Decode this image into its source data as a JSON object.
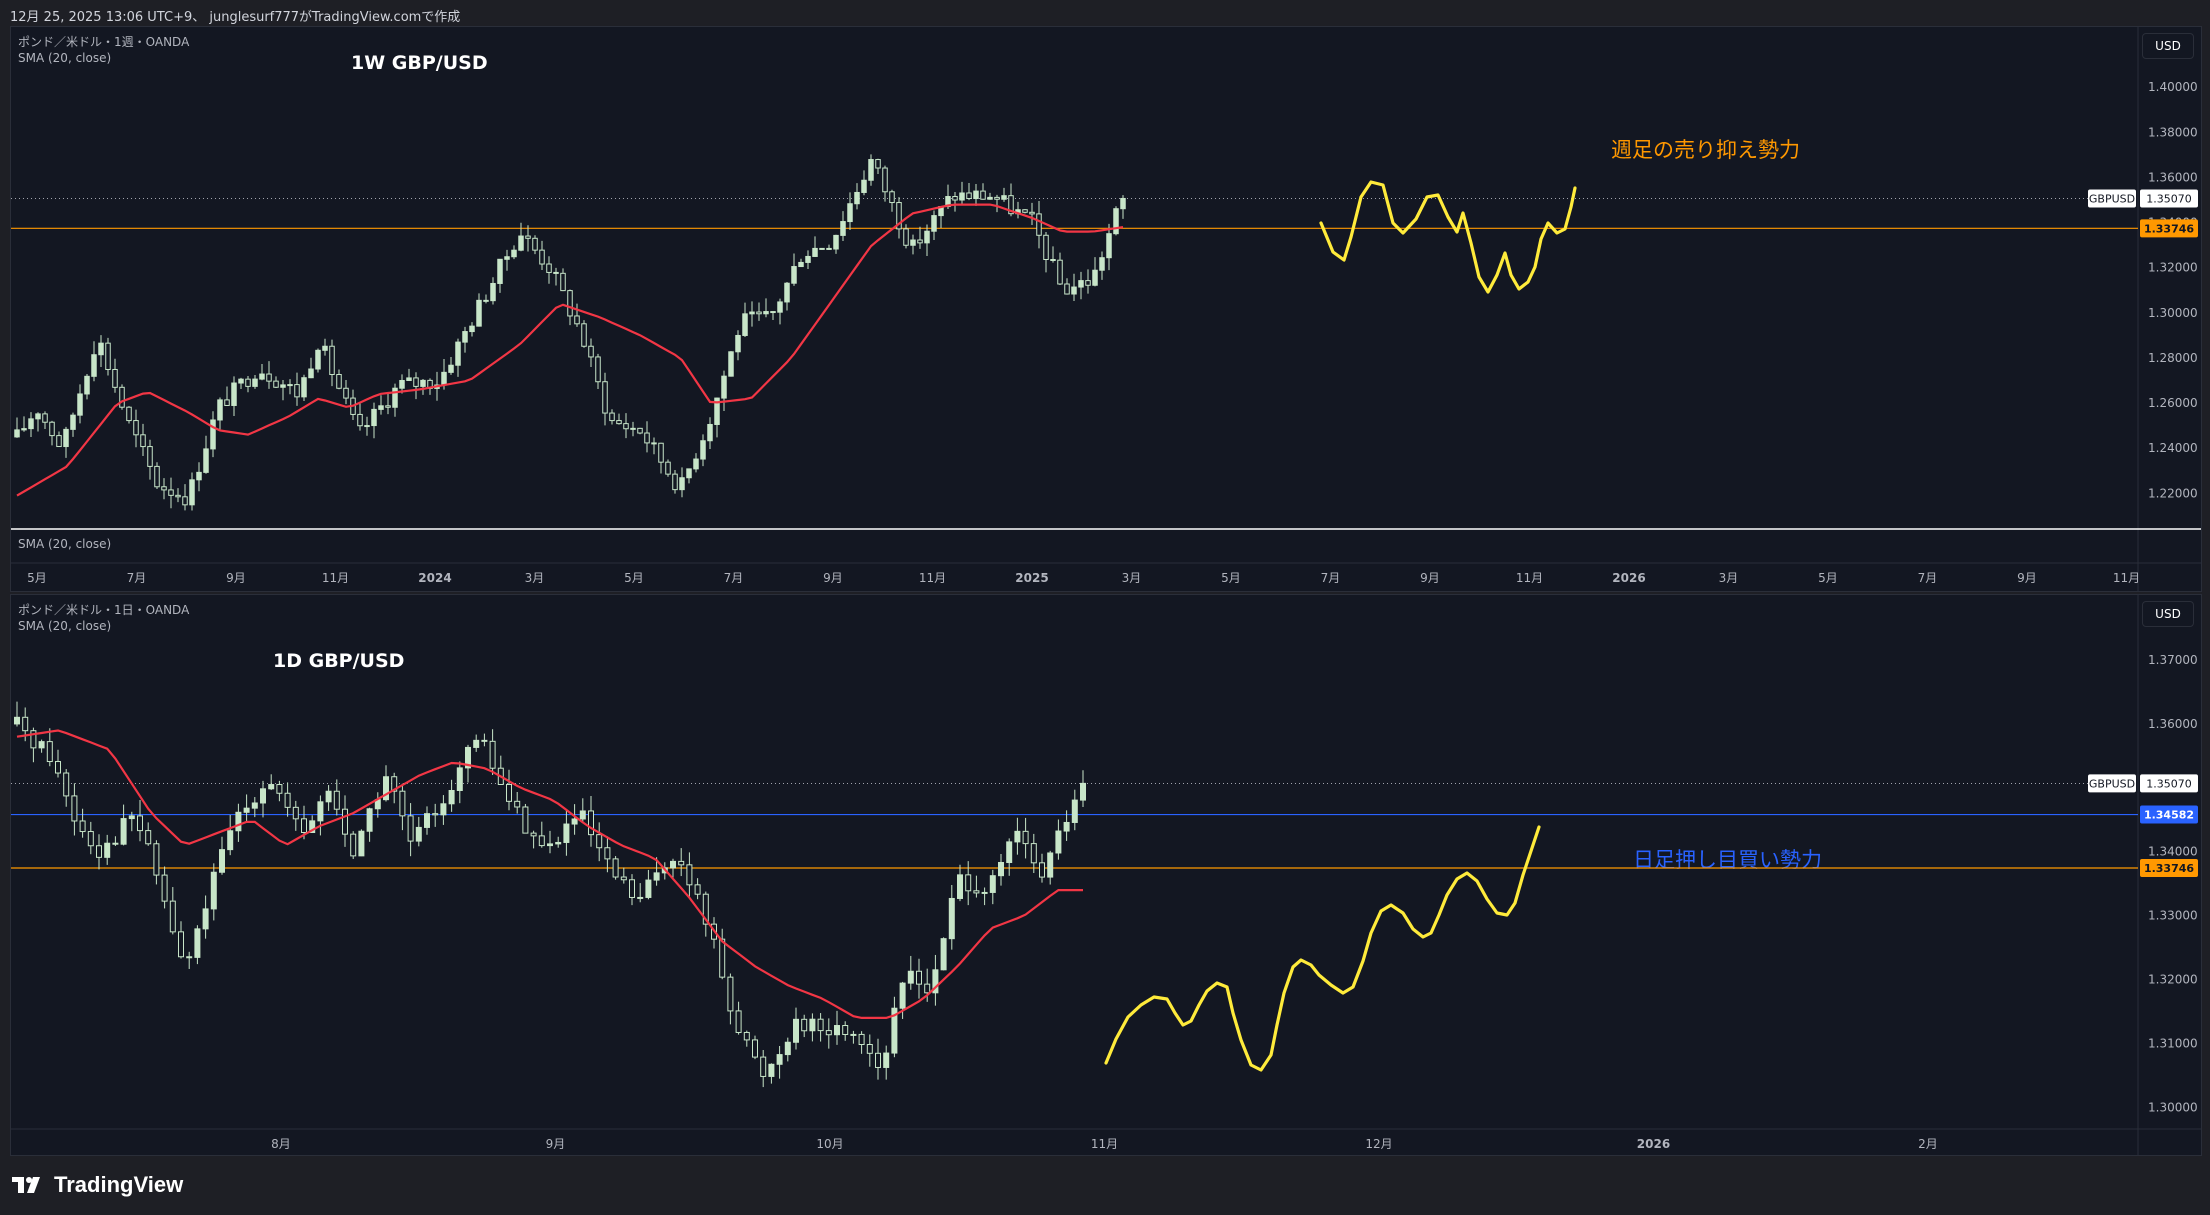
{
  "header": {
    "caption": "12月 25, 2025 13:06 UTC+9、 junglesurf777がTradingView.comで作成"
  },
  "footer": {
    "brand": "TradingView"
  },
  "colors": {
    "bull": "#c8e6c9",
    "bear": "#c8e6c9",
    "sma": "#f23645",
    "hand_drawn": "#ffeb3b",
    "orange_line": "#ff9800",
    "blue_line": "#2962ff",
    "background": "#131722"
  },
  "chart_data": [
    {
      "type": "candlestick",
      "instrument": "ポンド／米ドル・1週・OANDA",
      "indicator": "SMA (20, close)",
      "indicator_pane_label": "SMA (20, close)",
      "title": "1W GBP/USD",
      "currency": "USD",
      "y_ticks": [
        "1.40000",
        "1.38000",
        "1.36000",
        "1.34000",
        "1.32000",
        "1.30000",
        "1.28000",
        "1.26000",
        "1.24000",
        "1.22000"
      ],
      "ylim": [
        1.2095,
        1.4205
      ],
      "x_ticks": [
        "5月",
        "7月",
        "9月",
        "11月",
        "2024",
        "3月",
        "5月",
        "7月",
        "9月",
        "11月",
        "2025",
        "3月",
        "5月",
        "7月",
        "9月",
        "11月",
        "2026",
        "3月",
        "5月",
        "7月",
        "9月",
        "11月"
      ],
      "last_price": {
        "symbol": "GBPUSD",
        "value": "1.35070"
      },
      "levels": [
        {
          "label": "1.33746",
          "value": 1.33746,
          "color": "orange"
        }
      ],
      "annotation": {
        "text": "週足の売り抑え勢力",
        "color": "#ff9800"
      },
      "start_price": 1.245,
      "end_price": 1.3507,
      "weeks": 139,
      "path": [
        [
          0,
          1.245
        ],
        [
          4,
          1.258
        ],
        [
          9,
          1.24
        ],
        [
          16,
          1.29
        ],
        [
          22,
          1.252
        ],
        [
          28,
          1.224
        ],
        [
          34,
          1.218
        ],
        [
          40,
          1.258
        ],
        [
          48,
          1.276
        ],
        [
          56,
          1.264
        ],
        [
          60,
          1.288
        ],
        [
          68,
          1.246
        ],
        [
          76,
          1.268
        ],
        [
          84,
          1.27
        ],
        [
          90,
          1.295
        ],
        [
          100,
          1.336
        ],
        [
          106,
          1.32
        ],
        [
          112,
          1.292
        ],
        [
          118,
          1.252
        ],
        [
          124,
          1.248
        ],
        [
          132,
          1.222
        ],
        [
          138,
          1.254
        ],
        [
          144,
          1.296
        ],
        [
          150,
          1.298
        ],
        [
          156,
          1.326
        ],
        [
          162,
          1.332
        ],
        [
          170,
          1.368
        ],
        [
          178,
          1.328
        ],
        [
          186,
          1.352
        ],
        [
          194,
          1.352
        ],
        [
          202,
          1.34
        ],
        [
          208,
          1.31
        ],
        [
          214,
          1.315
        ],
        [
          220,
          1.352
        ]
      ],
      "sma_points": [
        [
          0,
          1.219
        ],
        [
          10,
          1.232
        ],
        [
          20,
          1.26
        ],
        [
          26,
          1.265
        ],
        [
          34,
          1.256
        ],
        [
          40,
          1.248
        ],
        [
          46,
          1.246
        ],
        [
          54,
          1.254
        ],
        [
          60,
          1.262
        ],
        [
          66,
          1.258
        ],
        [
          72,
          1.264
        ],
        [
          80,
          1.266
        ],
        [
          90,
          1.27
        ],
        [
          100,
          1.286
        ],
        [
          108,
          1.304
        ],
        [
          116,
          1.298
        ],
        [
          124,
          1.29
        ],
        [
          132,
          1.28
        ],
        [
          138,
          1.26
        ],
        [
          146,
          1.262
        ],
        [
          154,
          1.28
        ],
        [
          162,
          1.305
        ],
        [
          170,
          1.33
        ],
        [
          178,
          1.344
        ],
        [
          186,
          1.348
        ],
        [
          194,
          1.348
        ],
        [
          202,
          1.342
        ],
        [
          208,
          1.336
        ],
        [
          214,
          1.336
        ],
        [
          220,
          1.338
        ]
      ]
    },
    {
      "type": "candlestick",
      "instrument": "ポンド／米ドル・1日・OANDA",
      "indicator": "SMA (20, close)",
      "title": "1D GBP/USD",
      "currency": "USD",
      "y_ticks": [
        "1.37000",
        "1.36000",
        "1.35000",
        "1.34000",
        "1.33000",
        "1.32000",
        "1.31000",
        "1.30000"
      ],
      "ylim": [
        1.2963,
        1.3783
      ],
      "x_ticks": [
        "8月",
        "9月",
        "10月",
        "11月",
        "12月",
        "2026",
        "2月"
      ],
      "last_price": {
        "symbol": "GBPUSD",
        "value": "1.35070"
      },
      "levels": [
        {
          "label": "1.34582",
          "value": 1.34582,
          "color": "blue"
        },
        {
          "label": "1.33746",
          "value": 1.33746,
          "color": "orange"
        }
      ],
      "annotation": {
        "text": "日足押し目買い勢力",
        "color": "#2962ff"
      },
      "start_price": 1.359,
      "end_price": 1.3507,
      "days": 130,
      "path": [
        [
          0,
          1.36
        ],
        [
          8,
          1.355
        ],
        [
          14,
          1.345
        ],
        [
          20,
          1.34
        ],
        [
          28,
          1.346
        ],
        [
          34,
          1.335
        ],
        [
          40,
          1.321
        ],
        [
          46,
          1.334
        ],
        [
          52,
          1.345
        ],
        [
          60,
          1.352
        ],
        [
          68,
          1.342
        ],
        [
          74,
          1.35
        ],
        [
          80,
          1.34
        ],
        [
          88,
          1.352
        ],
        [
          94,
          1.341
        ],
        [
          102,
          1.349
        ],
        [
          110,
          1.358
        ],
        [
          118,
          1.347
        ],
        [
          126,
          1.34
        ],
        [
          134,
          1.346
        ],
        [
          140,
          1.338
        ],
        [
          148,
          1.332
        ],
        [
          156,
          1.34
        ],
        [
          164,
          1.33
        ],
        [
          172,
          1.312
        ],
        [
          178,
          1.305
        ],
        [
          186,
          1.314
        ],
        [
          192,
          1.312
        ],
        [
          200,
          1.312
        ],
        [
          206,
          1.306
        ],
        [
          212,
          1.322
        ],
        [
          218,
          1.318
        ],
        [
          224,
          1.336
        ],
        [
          232,
          1.334
        ],
        [
          238,
          1.343
        ],
        [
          244,
          1.336
        ],
        [
          250,
          1.345
        ],
        [
          254,
          1.351
        ]
      ],
      "sma_points": [
        [
          0,
          1.358
        ],
        [
          10,
          1.359
        ],
        [
          22,
          1.356
        ],
        [
          32,
          1.346
        ],
        [
          40,
          1.341
        ],
        [
          48,
          1.343
        ],
        [
          56,
          1.345
        ],
        [
          64,
          1.341
        ],
        [
          72,
          1.344
        ],
        [
          80,
          1.346
        ],
        [
          88,
          1.349
        ],
        [
          96,
          1.352
        ],
        [
          104,
          1.354
        ],
        [
          112,
          1.353
        ],
        [
          120,
          1.35
        ],
        [
          128,
          1.348
        ],
        [
          136,
          1.344
        ],
        [
          144,
          1.341
        ],
        [
          152,
          1.339
        ],
        [
          160,
          1.333
        ],
        [
          168,
          1.326
        ],
        [
          176,
          1.322
        ],
        [
          184,
          1.319
        ],
        [
          192,
          1.317
        ],
        [
          200,
          1.314
        ],
        [
          208,
          1.314
        ],
        [
          216,
          1.317
        ],
        [
          224,
          1.322
        ],
        [
          232,
          1.328
        ],
        [
          240,
          1.33
        ],
        [
          248,
          1.334
        ]
      ]
    }
  ]
}
